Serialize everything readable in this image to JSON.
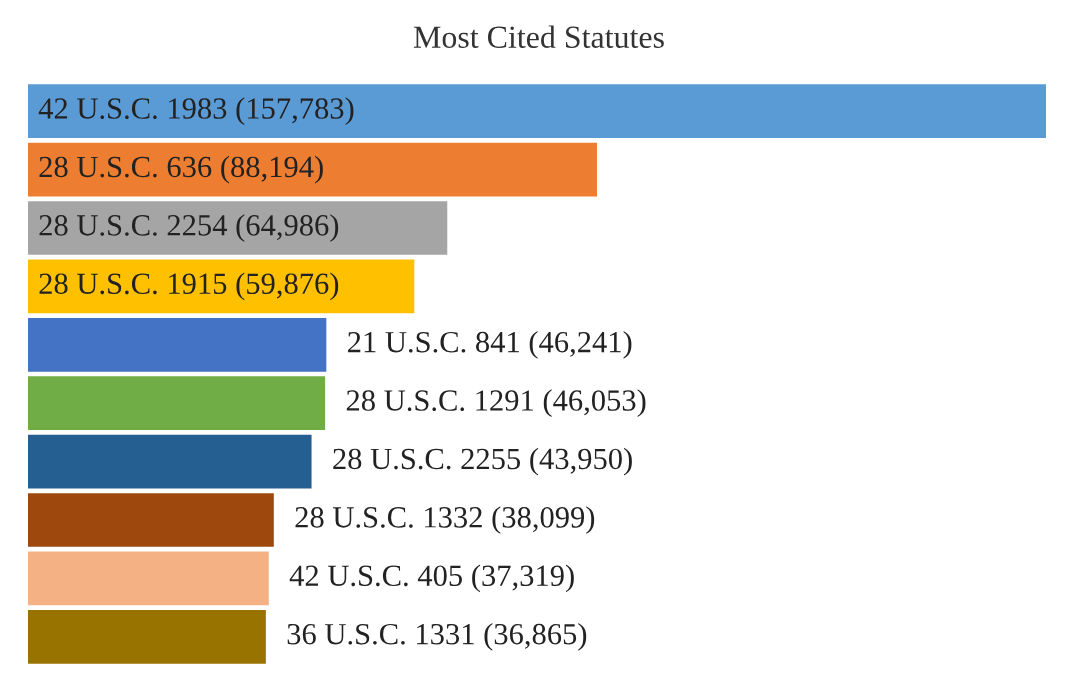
{
  "chart_data": {
    "type": "bar",
    "orientation": "horizontal",
    "title": "Most Cited Statutes",
    "categories": [
      null,
      null,
      null,
      null,
      null,
      null,
      null,
      null,
      null,
      null
    ],
    "values": [
      157783,
      88194,
      64986,
      59876,
      46241,
      46053,
      43950,
      38099,
      37319,
      36865
    ],
    "colors": [
      "#5b9bd5",
      "#ed7d31",
      "#a5a5a5",
      "#ffc000",
      "#4472c4",
      "#70ad47",
      "#255e91",
      "#9e480e",
      "#f4b183",
      "#997300"
    ],
    "value_labels": [
      "42 U.S.C. 1983 (157,783)",
      "28 U.S.C. 636 (88,194)",
      "28 U.S.C. 2254 (64,986)",
      "28 U.S.C. 1915 (59,876)",
      "21 U.S.C. 841 (46,241)",
      "28 U.S.C. 1291 (46,053)",
      "28 U.S.C. 2255 (43,950)",
      "28 U.S.C. 1332 (38,099)",
      "42 U.S.C. 405 (37,319)",
      "36 U.S.C. 1331 (36,865)"
    ]
  }
}
